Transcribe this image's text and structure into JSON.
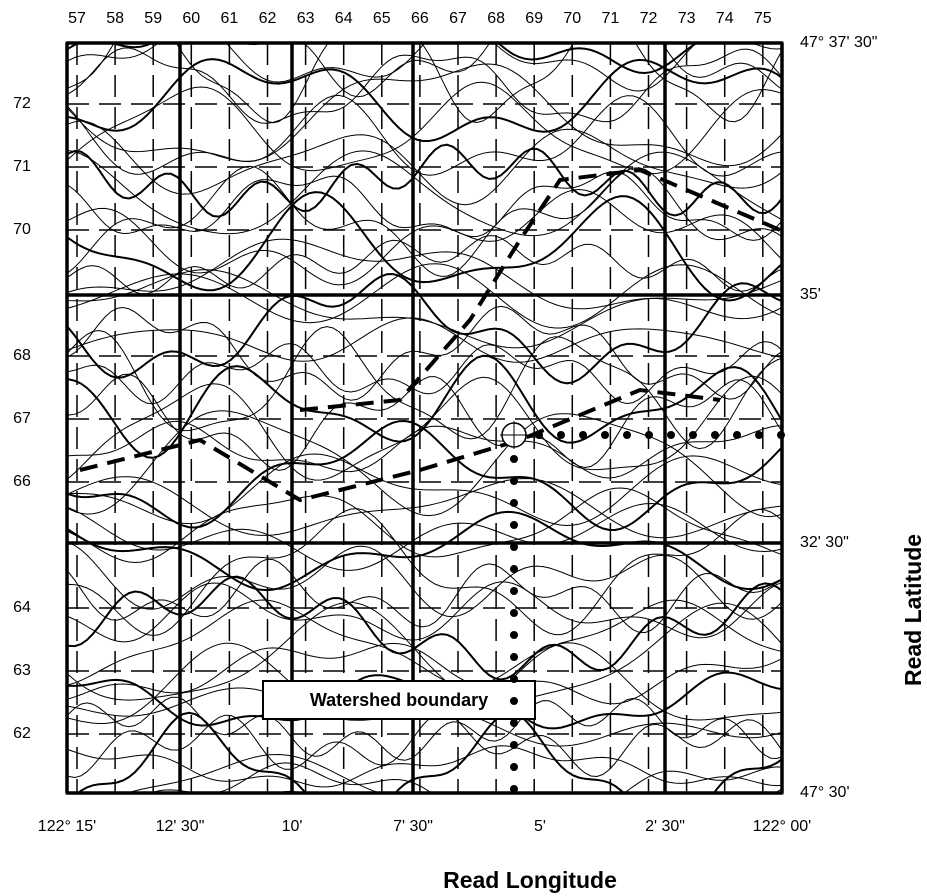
{
  "top_labels": [
    57,
    58,
    59,
    60,
    61,
    62,
    63,
    64,
    65,
    66,
    67,
    68,
    69,
    70,
    71,
    72,
    73,
    74,
    75
  ],
  "left_labels": [
    72,
    71,
    70,
    68,
    67,
    66,
    64,
    63,
    62
  ],
  "right_labels": [
    "47° 37' 30\"",
    "35'",
    "32' 30\"",
    "47° 30'"
  ],
  "bottom_labels": [
    "122° 15'",
    "12' 30\"",
    "10'",
    "7' 30\"",
    "5'",
    "2' 30\"",
    "122° 00'"
  ],
  "map_label": "Watershed boundary",
  "axis_titles": {
    "latitude": "Read Latitude",
    "longitude": "Read Longitude"
  }
}
